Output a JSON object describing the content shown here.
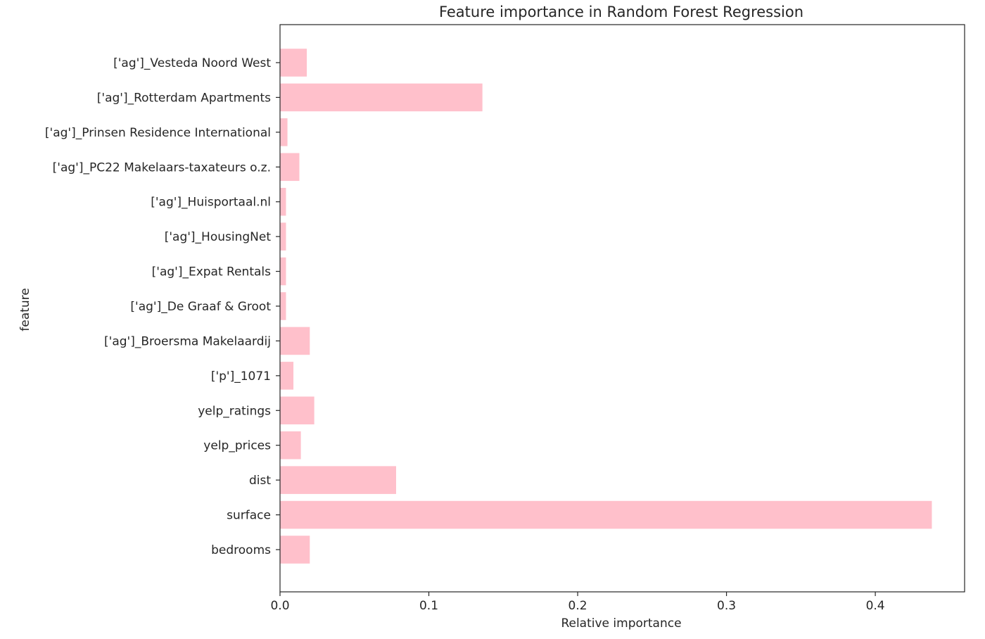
{
  "chart_data": {
    "type": "bar",
    "orientation": "horizontal",
    "title": "Feature importance in Random Forest Regression",
    "xlabel": "Relative importance",
    "ylabel": "feature",
    "xlim": [
      0,
      0.46
    ],
    "xticks": [
      0.0,
      0.1,
      0.2,
      0.3,
      0.4
    ],
    "xtick_labels": [
      "0.0",
      "0.1",
      "0.2",
      "0.3",
      "0.4"
    ],
    "grid": false,
    "bar_color": "#ffc0cb",
    "categories": [
      "bedrooms",
      "surface",
      "dist",
      "yelp_prices",
      "yelp_ratings",
      "['p']_1071",
      "['ag']_Broersma Makelaardij",
      "['ag']_De Graaf & Groot",
      "['ag']_Expat Rentals",
      "['ag']_HousingNet",
      "['ag']_Huisportaal.nl",
      "['ag']_PC22 Makelaars-taxateurs o.z.",
      "['ag']_Prinsen Residence International",
      "['ag']_Rotterdam Apartments",
      "['ag']_Vesteda Noord West"
    ],
    "values": [
      0.02,
      0.438,
      0.078,
      0.014,
      0.023,
      0.009,
      0.02,
      0.004,
      0.004,
      0.004,
      0.004,
      0.013,
      0.005,
      0.136,
      0.018
    ]
  }
}
